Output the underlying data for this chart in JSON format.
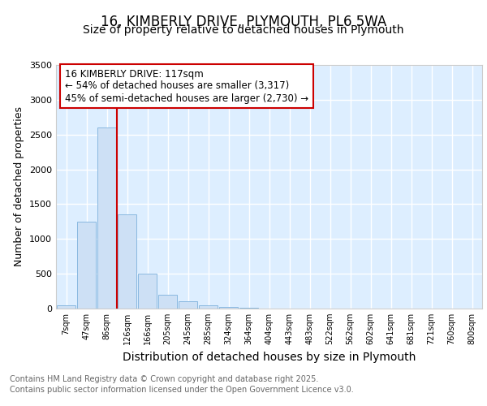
{
  "title1": "16, KIMBERLY DRIVE, PLYMOUTH, PL6 5WA",
  "title2": "Size of property relative to detached houses in Plymouth",
  "xlabel": "Distribution of detached houses by size in Plymouth",
  "ylabel": "Number of detached properties",
  "bar_labels": [
    "7sqm",
    "47sqm",
    "86sqm",
    "126sqm",
    "166sqm",
    "205sqm",
    "245sqm",
    "285sqm",
    "324sqm",
    "364sqm",
    "404sqm",
    "443sqm",
    "483sqm",
    "522sqm",
    "562sqm",
    "602sqm",
    "641sqm",
    "681sqm",
    "721sqm",
    "760sqm",
    "800sqm"
  ],
  "bar_values": [
    50,
    1250,
    2600,
    1350,
    500,
    200,
    110,
    50,
    20,
    10,
    5,
    3,
    0,
    0,
    0,
    0,
    0,
    0,
    0,
    0,
    0
  ],
  "bar_color": "#cde0f5",
  "bar_edge_color": "#89b8e0",
  "vline_position": 2.5,
  "vline_color": "#cc0000",
  "ylim": [
    0,
    3500
  ],
  "yticks": [
    0,
    500,
    1000,
    1500,
    2000,
    2500,
    3000,
    3500
  ],
  "annotation_line1": "16 KIMBERLY DRIVE: 117sqm",
  "annotation_line2": "← 54% of detached houses are smaller (3,317)",
  "annotation_line3": "45% of semi-detached houses are larger (2,730) →",
  "annotation_box_color": "#ffffff",
  "annotation_box_edge": "#cc0000",
  "footer1": "Contains HM Land Registry data © Crown copyright and database right 2025.",
  "footer2": "Contains public sector information licensed under the Open Government Licence v3.0.",
  "fig_bg_color": "#ffffff",
  "axes_bg_color": "#ddeeff",
  "grid_color": "#ffffff",
  "title_fontsize": 12,
  "subtitle_fontsize": 10,
  "tick_fontsize": 7,
  "ylabel_fontsize": 9,
  "xlabel_fontsize": 10,
  "footer_fontsize": 7,
  "annotation_fontsize": 8.5
}
